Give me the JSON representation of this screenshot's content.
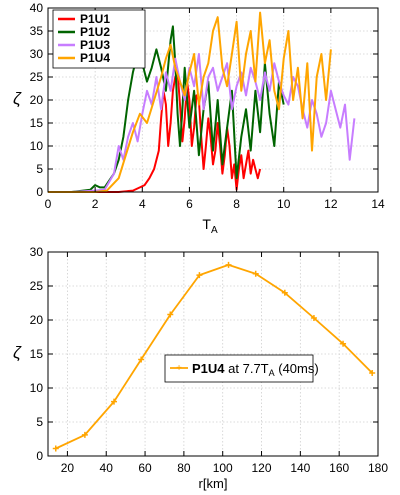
{
  "chart_data": [
    {
      "type": "line",
      "ylabel": "ζ",
      "xlabel": "T",
      "xlabel_sub": "A",
      "xlim": [
        0,
        14
      ],
      "ylim": [
        0,
        40
      ],
      "xticks": [
        0,
        2,
        4,
        6,
        8,
        10,
        12,
        14
      ],
      "yticks": [
        0,
        5,
        10,
        15,
        20,
        25,
        30,
        35,
        40
      ],
      "grid": true,
      "legend": "top-left",
      "series": [
        {
          "name": "P1U1",
          "color": "#ff0000",
          "x": [
            0,
            1,
            2,
            3,
            3.6,
            3.9,
            4.1,
            4.3,
            4.5,
            4.7,
            4.8,
            4.9,
            5.0,
            5.1,
            5.2,
            5.3,
            5.4,
            5.5,
            5.6,
            5.7,
            5.8,
            5.9,
            6.0,
            6.1,
            6.2,
            6.3,
            6.4,
            6.5,
            6.6,
            6.7,
            6.8,
            6.9,
            7.0,
            7.1,
            7.2,
            7.3,
            7.4,
            7.5,
            7.6,
            7.7,
            7.8,
            7.9,
            8.0,
            8.1,
            8.2,
            8.3,
            8.4,
            8.5,
            8.6,
            8.7,
            8.8,
            8.9,
            9.0
          ],
          "values": [
            0,
            0,
            0,
            0,
            0.3,
            1,
            1.5,
            3,
            5,
            9,
            16,
            22,
            19,
            10,
            15,
            22,
            25,
            26,
            19,
            11,
            16,
            24,
            20,
            10,
            14,
            21,
            20,
            12,
            5,
            10,
            16,
            12,
            6,
            9,
            15,
            10,
            4,
            8,
            14,
            10,
            3,
            6,
            0.5,
            5,
            8,
            3,
            6,
            9,
            4,
            7,
            5,
            3,
            5
          ]
        },
        {
          "name": "P1U2",
          "color": "#006400",
          "x": [
            0,
            1,
            1.8,
            2.0,
            2.2,
            2.4,
            2.6,
            2.8,
            3.0,
            3.2,
            3.4,
            3.6,
            3.8,
            4.0,
            4.2,
            4.4,
            4.6,
            4.8,
            5.0,
            5.2,
            5.3,
            5.4,
            5.5,
            5.6,
            5.7,
            5.8,
            6.0,
            6.2,
            6.4,
            6.6,
            6.8,
            7.0,
            7.2,
            7.4,
            7.6,
            7.8,
            8.0,
            8.2,
            8.4,
            8.6,
            8.8,
            9.0,
            9.2,
            9.4,
            9.6,
            9.8,
            10.0
          ],
          "values": [
            0,
            0,
            0.5,
            1.5,
            1,
            1,
            2.5,
            4,
            7,
            12,
            20,
            26,
            30,
            28,
            24,
            27,
            31,
            27,
            22,
            33,
            36,
            28,
            17,
            10,
            18,
            27,
            14,
            22,
            8,
            18,
            24,
            9,
            20,
            6,
            14,
            22,
            3,
            12,
            18,
            9,
            22,
            13,
            28,
            17,
            10,
            24,
            19
          ]
        },
        {
          "name": "P1U3",
          "color": "#c77dff",
          "x": [
            0,
            1,
            2,
            2.4,
            2.8,
            3.0,
            3.2,
            3.4,
            3.6,
            3.8,
            4.0,
            4.2,
            4.4,
            4.6,
            4.8,
            5.0,
            5.2,
            5.4,
            5.6,
            5.8,
            6.0,
            6.2,
            6.4,
            6.6,
            6.8,
            7.0,
            7.2,
            7.4,
            7.6,
            7.8,
            8.0,
            8.2,
            8.4,
            8.6,
            8.8,
            9.0,
            9.2,
            9.4,
            9.6,
            9.8,
            10.0,
            10.2,
            10.4,
            10.6,
            10.8,
            11.0,
            11.2,
            11.4,
            11.6,
            11.8,
            12.0,
            12.2,
            12.4,
            12.6,
            12.8,
            13.0
          ],
          "values": [
            0,
            0,
            0.3,
            0.5,
            4,
            10,
            7,
            12,
            15,
            11,
            17,
            22,
            19,
            25,
            18,
            26,
            22,
            29,
            24,
            20,
            27,
            23,
            30,
            18,
            25,
            27,
            22,
            25,
            28,
            18,
            23,
            26,
            21,
            27,
            24,
            20,
            26,
            22,
            28,
            24,
            21,
            19,
            25,
            23,
            18,
            14,
            20,
            17,
            12,
            15,
            22,
            18,
            14,
            19,
            7,
            16
          ]
        },
        {
          "name": "P1U4",
          "color": "#ffa500",
          "x": [
            0,
            1,
            2,
            2.5,
            3.0,
            3.3,
            3.6,
            3.9,
            4.2,
            4.5,
            4.8,
            5.0,
            5.2,
            5.4,
            5.6,
            5.8,
            6.0,
            6.2,
            6.4,
            6.6,
            6.8,
            7.0,
            7.2,
            7.4,
            7.6,
            7.8,
            8.0,
            8.2,
            8.4,
            8.6,
            8.8,
            9.0,
            9.2,
            9.4,
            9.6,
            9.8,
            10.0,
            10.2,
            10.4,
            10.6,
            10.8,
            11.0,
            11.2,
            11.4,
            11.6,
            11.8,
            12.0
          ],
          "values": [
            0,
            0,
            0,
            0.3,
            3,
            8,
            13,
            17,
            15,
            20,
            25,
            29,
            32,
            27,
            24,
            21,
            26,
            30,
            19,
            25,
            28,
            35,
            38,
            27,
            23,
            30,
            37,
            22,
            30,
            35,
            24,
            39,
            28,
            33,
            22,
            18,
            29,
            35,
            20,
            27,
            16,
            28,
            9,
            25,
            30,
            20,
            31
          ]
        }
      ]
    },
    {
      "type": "line",
      "ylabel": "ζ",
      "xlabel": "r[km]",
      "xlim": [
        10,
        180
      ],
      "ylim": [
        0,
        30
      ],
      "xticks": [
        20,
        40,
        60,
        80,
        100,
        120,
        140,
        160,
        180
      ],
      "yticks": [
        0,
        5,
        10,
        15,
        20,
        25,
        30
      ],
      "grid": true,
      "legend": "center",
      "series": [
        {
          "name": "P1U4",
          "legend_rest": " at 7.7T",
          "legend_sub": "A",
          "legend_tail": " (40ms)",
          "color": "#ffa500",
          "x": [
            14,
            29,
            44,
            58,
            73,
            88,
            103,
            117,
            132,
            147,
            162,
            177
          ],
          "values": [
            1.1,
            3.1,
            8.0,
            14.2,
            20.8,
            26.6,
            28.1,
            26.8,
            24.0,
            20.3,
            16.5,
            12.2
          ]
        }
      ]
    }
  ]
}
